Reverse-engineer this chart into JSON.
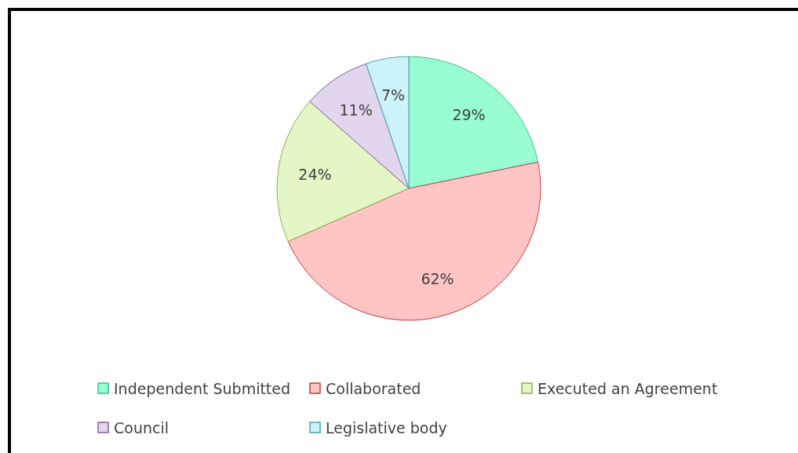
{
  "chart_data": {
    "type": "pie",
    "categories": [
      "Independent Submitted",
      "Collaborated",
      "Executed an Agreement",
      "Council",
      "Legislative body"
    ],
    "values": [
      29,
      62,
      24,
      11,
      7
    ],
    "colors": [
      "#99fdd2",
      "#ffc4c4",
      "#e4f6c6",
      "#e2d6ee",
      "#ccf2fb"
    ],
    "value_labels": [
      "29%",
      "62%",
      "24%",
      "11%",
      "7%"
    ],
    "legend": "bottom"
  }
}
